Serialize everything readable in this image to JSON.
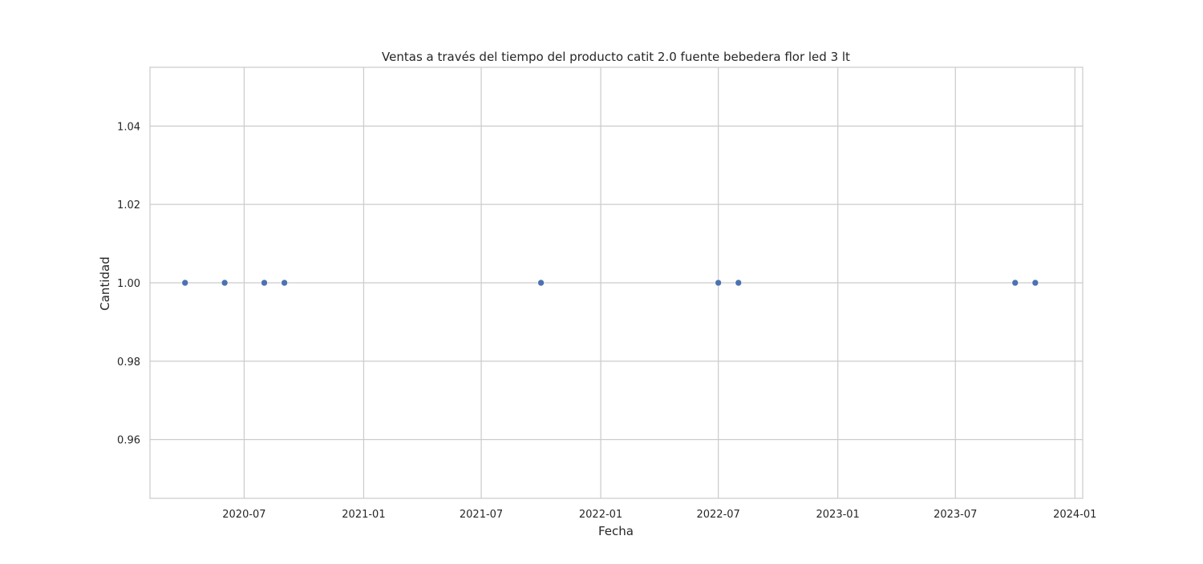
{
  "chart_data": {
    "type": "scatter",
    "title": "Ventas a través del tiempo del producto catit 2.0 fuente bebedera flor led 3 lt",
    "xlabel": "Fecha",
    "ylabel": "Cantidad",
    "x_type": "date",
    "xlim": [
      "2020-02-07",
      "2024-01-13"
    ],
    "ylim": [
      0.945,
      1.055
    ],
    "x_ticks": [
      {
        "value": "2020-07-01",
        "label": "2020-07"
      },
      {
        "value": "2021-01-01",
        "label": "2021-01"
      },
      {
        "value": "2021-07-01",
        "label": "2021-07"
      },
      {
        "value": "2022-01-01",
        "label": "2022-01"
      },
      {
        "value": "2022-07-01",
        "label": "2022-07"
      },
      {
        "value": "2023-01-01",
        "label": "2023-01"
      },
      {
        "value": "2023-07-01",
        "label": "2023-07"
      },
      {
        "value": "2024-01-01",
        "label": "2024-01"
      }
    ],
    "y_ticks": [
      {
        "value": 0.96,
        "label": "0.96"
      },
      {
        "value": 0.98,
        "label": "0.98"
      },
      {
        "value": 1.0,
        "label": "1.00"
      },
      {
        "value": 1.02,
        "label": "1.02"
      },
      {
        "value": 1.04,
        "label": "1.04"
      }
    ],
    "grid": true,
    "series": [
      {
        "color": "#4c72b0",
        "points": [
          {
            "x": "2020-04-01",
            "y": 1
          },
          {
            "x": "2020-06-01",
            "y": 1
          },
          {
            "x": "2020-08-01",
            "y": 1
          },
          {
            "x": "2020-09-01",
            "y": 1
          },
          {
            "x": "2021-10-01",
            "y": 1
          },
          {
            "x": "2022-07-01",
            "y": 1
          },
          {
            "x": "2022-08-01",
            "y": 1
          },
          {
            "x": "2023-10-01",
            "y": 1
          },
          {
            "x": "2023-11-01",
            "y": 1
          }
        ]
      }
    ]
  }
}
